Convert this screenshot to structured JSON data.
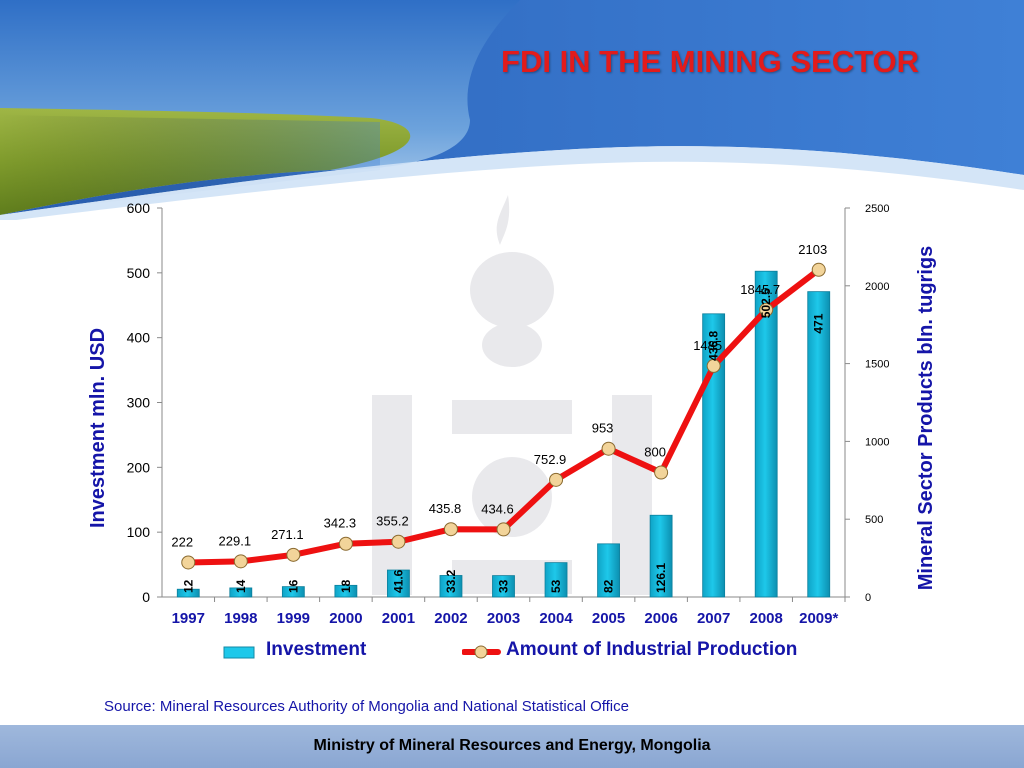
{
  "slide": {
    "title": "FDI  IN THE MINING SECTOR",
    "source": "Source: Mineral Resources Authority of Mongolia and National Statistical Office",
    "footer": "Ministry of Mineral Resources and Energy, Mongolia"
  },
  "colors": {
    "title": "#e21b1b",
    "axis_text": "#1515a8",
    "bar": "#1ec8ea",
    "line": "#ee1111",
    "marker": "#f2d49a",
    "footer": "#8fabd5"
  },
  "chart_data": {
    "type": "bar",
    "categories": [
      "1997",
      "1998",
      "1999",
      "2000",
      "2001",
      "2002",
      "2003",
      "2004",
      "2005",
      "2006",
      "2007",
      "2008",
      "2009*"
    ],
    "series": [
      {
        "name": "Investment",
        "type": "bar",
        "axis": "left",
        "values": [
          12,
          14,
          16,
          18,
          41.6,
          33.2,
          33,
          53,
          82,
          126.1,
          436.8,
          502.5,
          471
        ],
        "labels": [
          "12",
          "14",
          "16",
          "18",
          "41.6",
          "33.2",
          "33",
          "53",
          "82",
          "126.1",
          "436.8",
          "502.5",
          "471"
        ]
      },
      {
        "name": "Amount of Industrial Production",
        "type": "line",
        "axis": "right",
        "values": [
          222,
          229.1,
          271.1,
          342.3,
          355.2,
          435.8,
          434.6,
          752.9,
          953,
          800,
          1485,
          1845.7,
          2103
        ],
        "labels": [
          "222",
          "229.1",
          "271.1",
          "342.3",
          "355.2",
          "435.8",
          "434.6",
          "752.9",
          "953",
          "800",
          "1485",
          "1845.7",
          "2103"
        ]
      }
    ],
    "ylabel": "Investment mln. USD",
    "y2label": "Mineral Sector Products bln. tugrigs",
    "ylim": [
      0,
      600
    ],
    "yticks": [
      "0",
      "100",
      "200",
      "300",
      "400",
      "500",
      "600"
    ],
    "y2lim": [
      0,
      2500
    ],
    "y2ticks": [
      "0",
      "500",
      "1000",
      "1500",
      "2000",
      "2500"
    ],
    "legend": "bottom",
    "grid": false
  }
}
